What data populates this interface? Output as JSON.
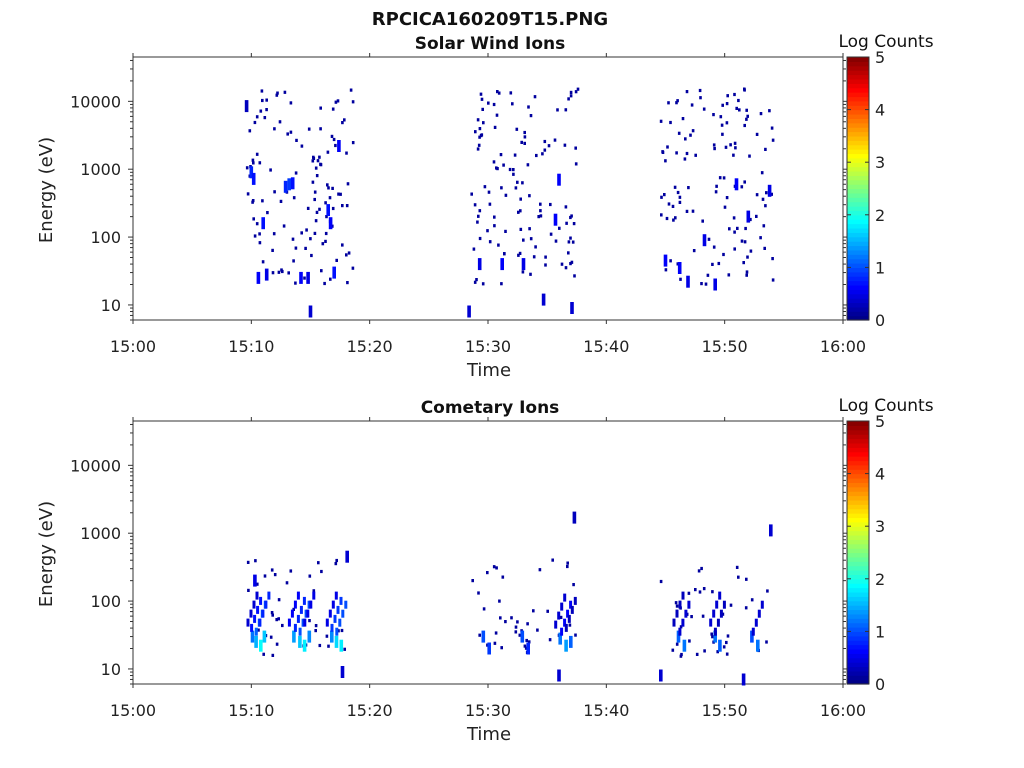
{
  "figure_title": "RPCICA160209T15.PNG",
  "colorbar": {
    "label": "Log Counts",
    "ticks": [
      "0",
      "1",
      "2",
      "3",
      "4",
      "5"
    ],
    "range": [
      0,
      5
    ],
    "colormap": "jet"
  },
  "chart_data": [
    {
      "type": "heatmap",
      "title": "Solar Wind Ions",
      "xlabel": "Time",
      "ylabel": "Energy (eV)",
      "y_scale": "log",
      "xlim": [
        "15:00",
        "16:00"
      ],
      "ylim": [
        6,
        45000
      ],
      "x_ticks": [
        "15:00",
        "15:10",
        "15:20",
        "15:30",
        "15:40",
        "15:50",
        "16:00"
      ],
      "y_ticks": [
        "10",
        "100",
        "1000",
        "10000"
      ],
      "scan_intervals": [
        [
          "15:09.5",
          "15:18.5"
        ],
        [
          "15:28.5",
          "15:37.5"
        ],
        [
          "15:44.5",
          "15:54"
        ]
      ],
      "value_range_observed": [
        0,
        1
      ],
      "points": [
        {
          "t": 9.6,
          "e": 8500,
          "v": 0.3
        },
        {
          "t": 10.0,
          "e": 900,
          "v": 0.8
        },
        {
          "t": 10.2,
          "e": 720,
          "v": 0.7
        },
        {
          "t": 10.6,
          "e": 25,
          "v": 0.6
        },
        {
          "t": 11.0,
          "e": 160,
          "v": 0.7
        },
        {
          "t": 11.3,
          "e": 28,
          "v": 0.5
        },
        {
          "t": 12.9,
          "e": 550,
          "v": 0.8
        },
        {
          "t": 13.2,
          "e": 600,
          "v": 0.9
        },
        {
          "t": 13.5,
          "e": 620,
          "v": 0.7
        },
        {
          "t": 14.2,
          "e": 25,
          "v": 0.6
        },
        {
          "t": 14.8,
          "e": 25,
          "v": 0.5
        },
        {
          "t": 15.0,
          "e": 8,
          "v": 0.4
        },
        {
          "t": 16.5,
          "e": 250,
          "v": 0.7
        },
        {
          "t": 16.7,
          "e": 160,
          "v": 0.6
        },
        {
          "t": 17.0,
          "e": 30,
          "v": 0.7
        },
        {
          "t": 17.4,
          "e": 2200,
          "v": 0.6
        },
        {
          "t": 28.4,
          "e": 8,
          "v": 0.4
        },
        {
          "t": 29.3,
          "e": 40,
          "v": 0.5
        },
        {
          "t": 31.2,
          "e": 40,
          "v": 0.6
        },
        {
          "t": 33.0,
          "e": 40,
          "v": 0.5
        },
        {
          "t": 34.7,
          "e": 12,
          "v": 0.4
        },
        {
          "t": 35.7,
          "e": 180,
          "v": 0.6
        },
        {
          "t": 36.0,
          "e": 700,
          "v": 0.6
        },
        {
          "t": 37.1,
          "e": 9,
          "v": 0.4
        },
        {
          "t": 45.0,
          "e": 45,
          "v": 0.6
        },
        {
          "t": 46.2,
          "e": 35,
          "v": 0.6
        },
        {
          "t": 46.9,
          "e": 22,
          "v": 0.5
        },
        {
          "t": 48.3,
          "e": 90,
          "v": 0.5
        },
        {
          "t": 49.2,
          "e": 20,
          "v": 0.5
        },
        {
          "t": 51.0,
          "e": 600,
          "v": 0.6
        },
        {
          "t": 52.0,
          "e": 200,
          "v": 0.5
        },
        {
          "t": 53.8,
          "e": 480,
          "v": 0.5
        }
      ]
    },
    {
      "type": "heatmap",
      "title": "Cometary Ions",
      "xlabel": "Time",
      "ylabel": "Energy (eV)",
      "y_scale": "log",
      "xlim": [
        "15:00",
        "16:00"
      ],
      "ylim": [
        6,
        45000
      ],
      "x_ticks": [
        "15:00",
        "15:10",
        "15:20",
        "15:30",
        "15:40",
        "15:50",
        "16:00"
      ],
      "y_ticks": [
        "10",
        "100",
        "1000",
        "10000"
      ],
      "scan_intervals": [
        [
          "15:09.5",
          "15:18.5"
        ],
        [
          "15:28.5",
          "15:37.5"
        ],
        [
          "15:44.5",
          "15:54"
        ]
      ],
      "value_range_observed": [
        0,
        2
      ],
      "points": [
        {
          "t": 10.1,
          "e": 30,
          "v": 1.2
        },
        {
          "t": 10.4,
          "e": 25,
          "v": 1.5
        },
        {
          "t": 10.8,
          "e": 22,
          "v": 1.9
        },
        {
          "t": 11.1,
          "e": 30,
          "v": 1.6
        },
        {
          "t": 10.3,
          "e": 200,
          "v": 0.5
        },
        {
          "t": 13.6,
          "e": 30,
          "v": 1.4
        },
        {
          "t": 14.1,
          "e": 25,
          "v": 1.6
        },
        {
          "t": 14.5,
          "e": 22,
          "v": 1.8
        },
        {
          "t": 14.9,
          "e": 30,
          "v": 1.3
        },
        {
          "t": 16.8,
          "e": 30,
          "v": 1.3
        },
        {
          "t": 17.2,
          "e": 25,
          "v": 1.7
        },
        {
          "t": 17.6,
          "e": 22,
          "v": 1.8
        },
        {
          "t": 18.1,
          "e": 450,
          "v": 0.4
        },
        {
          "t": 17.7,
          "e": 9,
          "v": 0.4
        },
        {
          "t": 29.6,
          "e": 30,
          "v": 1.0
        },
        {
          "t": 30.1,
          "e": 20,
          "v": 0.9
        },
        {
          "t": 32.9,
          "e": 30,
          "v": 1.0
        },
        {
          "t": 33.4,
          "e": 20,
          "v": 0.8
        },
        {
          "t": 36.1,
          "e": 28,
          "v": 1.2
        },
        {
          "t": 36.6,
          "e": 22,
          "v": 1.4
        },
        {
          "t": 37.0,
          "e": 25,
          "v": 1.1
        },
        {
          "t": 36.0,
          "e": 8,
          "v": 0.4
        },
        {
          "t": 37.3,
          "e": 1700,
          "v": 0.3
        },
        {
          "t": 44.6,
          "e": 8,
          "v": 0.4
        },
        {
          "t": 46.1,
          "e": 30,
          "v": 1.1
        },
        {
          "t": 46.6,
          "e": 22,
          "v": 1.2
        },
        {
          "t": 49.2,
          "e": 30,
          "v": 1.2
        },
        {
          "t": 49.6,
          "e": 22,
          "v": 1.1
        },
        {
          "t": 52.3,
          "e": 30,
          "v": 1.0
        },
        {
          "t": 52.8,
          "e": 22,
          "v": 1.2
        },
        {
          "t": 51.6,
          "e": 7,
          "v": 0.4
        },
        {
          "t": 53.9,
          "e": 1100,
          "v": 0.4
        }
      ]
    }
  ]
}
